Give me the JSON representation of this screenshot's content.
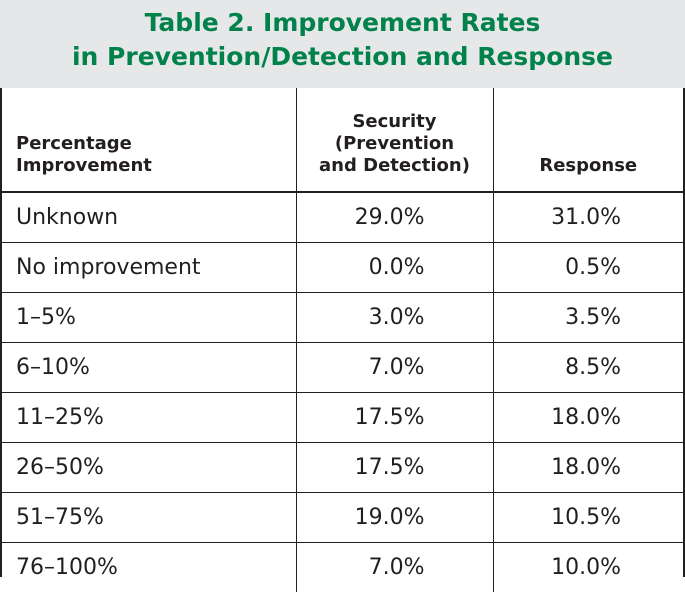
{
  "title": {
    "line1": "Table 2. Improvement Rates",
    "line2": "in Prevention/Detection and Response"
  },
  "chart_data": {
    "type": "table",
    "title": "Table 2. Improvement Rates in Prevention/Detection and Response",
    "columns": [
      "Percentage Improvement",
      "Security (Prevention and Detection)",
      "Response"
    ],
    "header": {
      "col1": [
        "Percentage",
        "Improvement"
      ],
      "col2": [
        "Security",
        "(Prevention",
        "and Detection)"
      ],
      "col3": [
        "Response"
      ]
    },
    "rows": [
      {
        "label": "Unknown",
        "security": "29.0%",
        "response": "31.0%"
      },
      {
        "label": "No improvement",
        "security": "0.0%",
        "response": "0.5%"
      },
      {
        "label": "1–5%",
        "security": "3.0%",
        "response": "3.5%"
      },
      {
        "label": "6–10%",
        "security": "7.0%",
        "response": "8.5%"
      },
      {
        "label": "11–25%",
        "security": "17.5%",
        "response": "18.0%"
      },
      {
        "label": "26–50%",
        "security": "17.5%",
        "response": "18.0%"
      },
      {
        "label": "51–75%",
        "security": "19.0%",
        "response": "10.5%"
      },
      {
        "label": "76–100%",
        "security": "7.0%",
        "response": "10.0%"
      }
    ]
  },
  "colors": {
    "title_text": "#00824a",
    "title_band": "#e6e7e8",
    "rule": "#231f20"
  }
}
